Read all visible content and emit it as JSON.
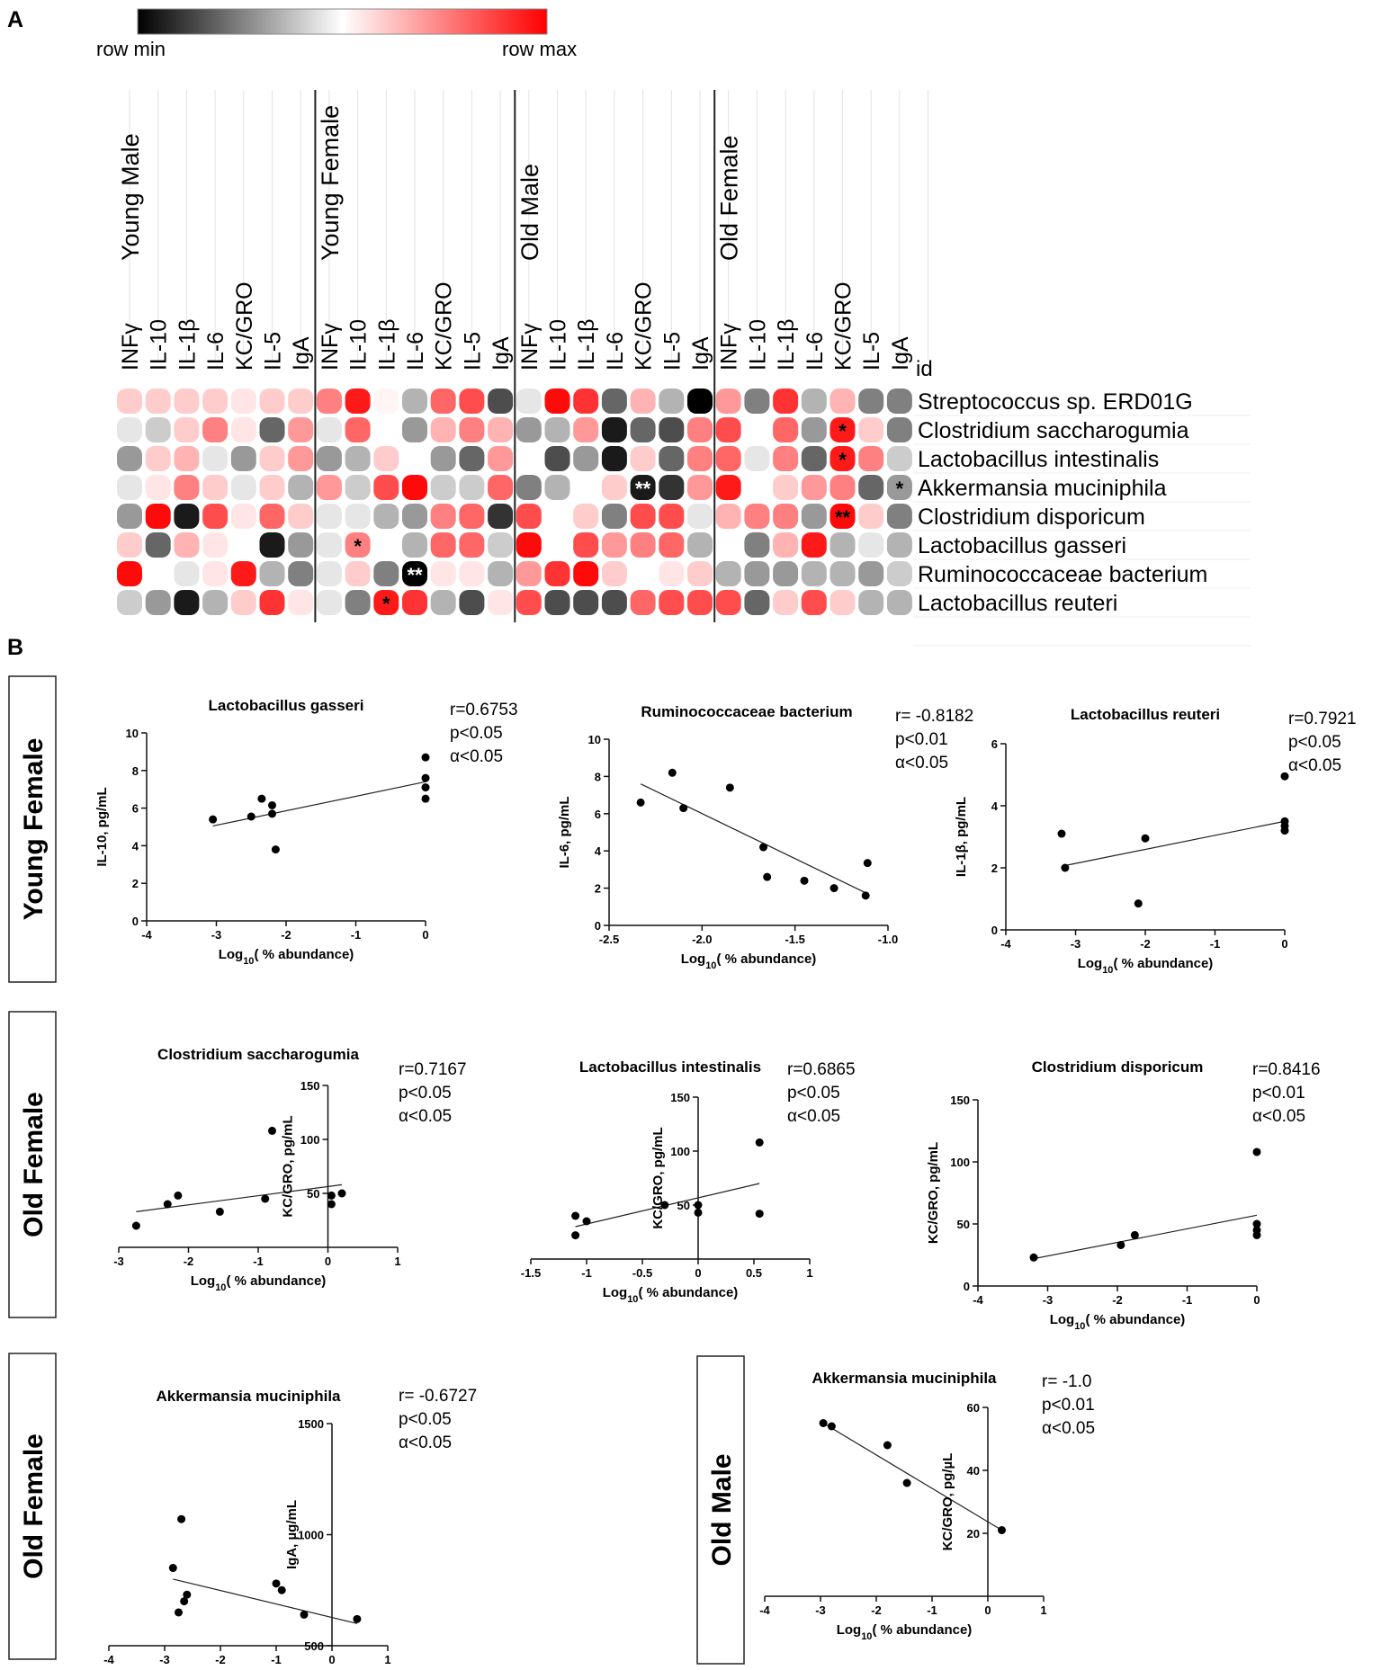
{
  "figure": {
    "panel_a": "A",
    "panel_b": "B",
    "legend": {
      "min_label": "row min",
      "max_label": "row max",
      "min_color": "#000000",
      "mid_color": "#ffffff",
      "max_color": "#ff0000"
    },
    "groups": [
      "Young Male",
      "Young Female",
      "Old Male",
      "Old Female"
    ],
    "cytokines": [
      "INFγ",
      "IL-10",
      "IL-1β",
      "IL-6",
      "KC/GRO",
      "IL-5",
      "IgA"
    ],
    "id_label": "id",
    "side_labels": [
      "Young Female",
      "Old Female",
      "Old Female",
      "Old Male"
    ]
  },
  "chart_data": [
    {
      "type": "heatmap",
      "title": "",
      "legend": "top-left",
      "scale": "row min to row max (values 0 = row min, 1 = row max, 0.5 = white)",
      "rows": [
        "Streptococcus sp. ERD01G",
        "Clostridium saccharogumia",
        "Lactobacillus intestinalis",
        "Akkermansia muciniphila",
        "Clostridium disporicum",
        "Lactobacillus gasseri",
        "Ruminococcaceae bacterium",
        "Lactobacillus reuteri"
      ],
      "columns": [
        "Young Male INFγ",
        "Young Male IL-10",
        "Young Male IL-1β",
        "Young Male IL-6",
        "Young Male KC/GRO",
        "Young Male IL-5",
        "Young Male IgA",
        "Young Female INFγ",
        "Young Female IL-10",
        "Young Female IL-1β",
        "Young Female IL-6",
        "Young Female KC/GRO",
        "Young Female IL-5",
        "Young Female IgA",
        "Old Male INFγ",
        "Old Male IL-10",
        "Old Male IL-1β",
        "Old Male IL-6",
        "Old Male KC/GRO",
        "Old Male IL-5",
        "Old Male IgA",
        "Old Female INFγ",
        "Old Female IL-10",
        "Old Female IL-1β",
        "Old Female IL-6",
        "Old Female KC/GRO",
        "Old Female IL-5",
        "Old Female IgA"
      ],
      "values": [
        [
          0.6,
          0.6,
          0.6,
          0.6,
          0.55,
          0.6,
          0.6,
          0.75,
          0.95,
          0.52,
          0.35,
          0.8,
          0.85,
          0.15,
          0.45,
          0.98,
          0.9,
          0.2,
          0.65,
          0.35,
          0.0,
          0.7,
          0.25,
          0.9,
          0.35,
          0.65,
          0.25,
          0.25
        ],
        [
          0.45,
          0.4,
          0.6,
          0.75,
          0.55,
          0.2,
          0.7,
          0.45,
          0.8,
          0.5,
          0.3,
          0.65,
          0.75,
          0.65,
          0.3,
          0.35,
          0.7,
          0.05,
          0.2,
          0.15,
          0.75,
          0.85,
          0.5,
          0.8,
          0.3,
          0.95,
          0.6,
          0.25
        ],
        [
          0.3,
          0.6,
          0.65,
          0.45,
          0.3,
          0.6,
          0.7,
          0.3,
          0.35,
          0.6,
          0.5,
          0.3,
          0.2,
          0.7,
          0.5,
          0.15,
          0.3,
          0.05,
          0.6,
          0.2,
          0.75,
          0.8,
          0.45,
          0.75,
          0.2,
          0.95,
          0.75,
          0.4
        ],
        [
          0.45,
          0.55,
          0.75,
          0.6,
          0.45,
          0.6,
          0.35,
          0.7,
          0.4,
          0.85,
          0.98,
          0.4,
          0.4,
          0.8,
          0.25,
          0.35,
          0.5,
          0.6,
          0.05,
          0.1,
          0.7,
          0.95,
          0.5,
          0.6,
          0.7,
          0.75,
          0.2,
          0.3
        ],
        [
          0.3,
          0.98,
          0.05,
          0.85,
          0.55,
          0.8,
          0.6,
          0.45,
          0.45,
          0.35,
          0.3,
          0.75,
          0.8,
          0.1,
          0.85,
          0.5,
          0.6,
          0.25,
          0.85,
          0.85,
          0.45,
          0.65,
          0.75,
          0.75,
          0.3,
          0.98,
          0.6,
          0.25
        ],
        [
          0.6,
          0.2,
          0.65,
          0.55,
          0.5,
          0.05,
          0.3,
          0.45,
          0.75,
          0.5,
          0.35,
          0.8,
          0.8,
          0.4,
          0.98,
          0.5,
          0.85,
          0.7,
          0.75,
          0.8,
          0.35,
          0.5,
          0.25,
          0.65,
          0.95,
          0.35,
          0.45,
          0.35
        ],
        [
          0.98,
          0.5,
          0.45,
          0.55,
          0.95,
          0.35,
          0.25,
          0.45,
          0.6,
          0.25,
          0.0,
          0.55,
          0.55,
          0.35,
          0.7,
          0.9,
          0.98,
          0.6,
          0.5,
          0.55,
          0.6,
          0.35,
          0.3,
          0.3,
          0.35,
          0.35,
          0.3,
          0.4
        ],
        [
          0.4,
          0.3,
          0.05,
          0.35,
          0.6,
          0.9,
          0.55,
          0.45,
          0.25,
          0.95,
          0.9,
          0.35,
          0.15,
          0.55,
          0.85,
          0.15,
          0.15,
          0.15,
          0.8,
          0.85,
          0.85,
          0.85,
          0.2,
          0.6,
          0.85,
          0.6,
          0.35,
          0.35
        ]
      ],
      "annotations": [
        {
          "row": "Clostridium saccharogumia",
          "column": "Old Female KC/GRO",
          "text": "*"
        },
        {
          "row": "Lactobacillus intestinalis",
          "column": "Old Female KC/GRO",
          "text": "*"
        },
        {
          "row": "Akkermansia muciniphila",
          "column": "Old Male KC/GRO",
          "text": "**"
        },
        {
          "row": "Akkermansia muciniphila",
          "column": "Old Female IgA",
          "text": "*"
        },
        {
          "row": "Clostridium disporicum",
          "column": "Old Female KC/GRO",
          "text": "**"
        },
        {
          "row": "Lactobacillus gasseri",
          "column": "Young Female IL-10",
          "text": "*"
        },
        {
          "row": "Ruminococcaceae bacterium",
          "column": "Young Female IL-6",
          "text": "**"
        },
        {
          "row": "Lactobacillus reuteri",
          "column": "Young Female IL-1β",
          "text": "*"
        }
      ]
    },
    {
      "type": "scatter",
      "title": "Lactobacillus gasseri",
      "group": "Young Female",
      "xlabel": "Log10( % abundance)",
      "ylabel": "IL-10, pg/mL",
      "xlim": [
        -4,
        0
      ],
      "ylim": [
        0,
        10
      ],
      "xticks": [
        -4,
        -3,
        -2,
        -1,
        0
      ],
      "yticks": [
        0,
        2,
        4,
        6,
        8,
        10
      ],
      "points": [
        [
          -3.05,
          5.4
        ],
        [
          -2.5,
          5.55
        ],
        [
          -2.35,
          6.5
        ],
        [
          -2.2,
          5.7
        ],
        [
          -2.2,
          6.15
        ],
        [
          -2.15,
          3.8
        ],
        [
          0,
          6.5
        ],
        [
          0,
          7.1
        ],
        [
          0,
          7.6
        ],
        [
          0,
          8.7
        ]
      ],
      "fit": [
        [
          -3.05,
          5.05
        ],
        [
          0,
          7.4
        ]
      ],
      "stats": [
        "r=0.6753",
        "p<0.05",
        "α<0.05"
      ]
    },
    {
      "type": "scatter",
      "title": "Ruminococcaceae bacterium",
      "group": "Young Female",
      "xlabel": "Log10( % abundance)",
      "ylabel": "IL-6, pg/mL",
      "xlim": [
        -2.5,
        -1.0
      ],
      "ylim": [
        0,
        10
      ],
      "xticks": [
        -2.5,
        -2.0,
        -1.5,
        -1.0
      ],
      "yticks": [
        0,
        2,
        4,
        6,
        8,
        10
      ],
      "points": [
        [
          -2.33,
          6.6
        ],
        [
          -2.16,
          8.2
        ],
        [
          -2.1,
          6.3
        ],
        [
          -1.85,
          7.4
        ],
        [
          -1.67,
          4.2
        ],
        [
          -1.65,
          2.6
        ],
        [
          -1.45,
          2.4
        ],
        [
          -1.29,
          2.0
        ],
        [
          -1.12,
          1.6
        ],
        [
          -1.11,
          3.35
        ]
      ],
      "fit": [
        [
          -2.33,
          7.6
        ],
        [
          -1.11,
          1.7
        ]
      ],
      "stats": [
        "r= -0.8182",
        "p<0.01",
        "α<0.05"
      ]
    },
    {
      "type": "scatter",
      "title": "Lactobacillus reuteri",
      "group": "Young Female",
      "xlabel": "Log10( % abundance)",
      "ylabel": "IL-1β, pg/mL",
      "xlim": [
        -4,
        0
      ],
      "ylim": [
        0,
        6
      ],
      "xticks": [
        -4,
        -3,
        -2,
        -1,
        0
      ],
      "yticks": [
        0,
        2,
        4,
        6
      ],
      "points": [
        [
          -3.2,
          3.1
        ],
        [
          -3.15,
          2.0
        ],
        [
          -2.1,
          0.85
        ],
        [
          -2.0,
          2.95
        ],
        [
          0,
          3.2
        ],
        [
          0,
          3.35
        ],
        [
          0,
          3.5
        ],
        [
          0,
          4.95
        ]
      ],
      "fit": [
        [
          -3.2,
          2.05
        ],
        [
          0,
          3.5
        ]
      ],
      "stats": [
        "r=0.7921",
        "p<0.05",
        "α<0.05"
      ]
    },
    {
      "type": "scatter",
      "title": "Clostridium saccharogumia",
      "group": "Old Female",
      "xlabel": "Log10( % abundance)",
      "ylabel": "KC/GRO, pg/mL",
      "xlim": [
        -3,
        1
      ],
      "ylim": [
        0,
        150
      ],
      "xticks": [
        -3,
        -2,
        -1,
        0,
        1
      ],
      "yticks": [
        50,
        100,
        150
      ],
      "points": [
        [
          -2.75,
          20
        ],
        [
          -2.3,
          40
        ],
        [
          -2.15,
          48
        ],
        [
          -1.55,
          33
        ],
        [
          -0.9,
          45
        ],
        [
          0.05,
          40
        ],
        [
          0.05,
          48
        ],
        [
          0.2,
          50
        ],
        [
          -0.8,
          108
        ]
      ],
      "fit": [
        [
          -2.75,
          33
        ],
        [
          0.2,
          58
        ]
      ],
      "stats": [
        "r=0.7167",
        "p<0.05",
        "α<0.05"
      ]
    },
    {
      "type": "scatter",
      "title": "Lactobacillus intestinalis",
      "group": "Old Female",
      "xlabel": "Log10( % abundance)",
      "ylabel": "KC/GRO, pg/mL",
      "xlim": [
        -1.5,
        1.0
      ],
      "ylim": [
        0,
        150
      ],
      "xticks": [
        -1.5,
        -1.0,
        -0.5,
        0.0,
        0.5,
        1.0
      ],
      "yticks": [
        50,
        100,
        150
      ],
      "points": [
        [
          -1.1,
          22
        ],
        [
          -1.1,
          40
        ],
        [
          -1.0,
          35
        ],
        [
          -0.3,
          50
        ],
        [
          0.0,
          43
        ],
        [
          0.0,
          50
        ],
        [
          0.55,
          42
        ],
        [
          0.55,
          108
        ]
      ],
      "fit": [
        [
          -1.1,
          30
        ],
        [
          0.55,
          70
        ]
      ],
      "stats": [
        "r=0.6865",
        "p<0.05",
        "α<0.05"
      ]
    },
    {
      "type": "scatter",
      "title": "Clostridium disporicum",
      "group": "Old Female",
      "xlabel": "Log10( % abundance)",
      "ylabel": "KC/GRO, pg/mL",
      "xlim": [
        -4,
        0
      ],
      "ylim": [
        0,
        150
      ],
      "xticks": [
        -4,
        -3,
        -2,
        -1,
        0
      ],
      "yticks": [
        0,
        50,
        100,
        150
      ],
      "points": [
        [
          -3.2,
          23
        ],
        [
          -1.95,
          33
        ],
        [
          -1.75,
          41
        ],
        [
          0,
          41
        ],
        [
          0,
          45
        ],
        [
          0,
          50
        ],
        [
          0,
          108
        ]
      ],
      "fit": [
        [
          -3.2,
          22
        ],
        [
          0,
          57
        ]
      ],
      "stats": [
        "r=0.8416",
        "p<0.01",
        "α<0.05"
      ]
    },
    {
      "type": "scatter",
      "title": "Akkermansia muciniphila",
      "group": "Old Female",
      "xlabel": "Log10( % abundance)",
      "ylabel": "IgA, µg/mL",
      "xlim": [
        -4,
        1
      ],
      "ylim": [
        500,
        1500
      ],
      "xticks": [
        -4,
        -3,
        -2,
        -1,
        0,
        1
      ],
      "yticks": [
        500,
        1000,
        1500
      ],
      "points": [
        [
          -2.85,
          850
        ],
        [
          -2.75,
          650
        ],
        [
          -2.7,
          1070
        ],
        [
          -2.65,
          700
        ],
        [
          -2.6,
          730
        ],
        [
          -1.0,
          780
        ],
        [
          -0.9,
          750
        ],
        [
          -0.5,
          640
        ],
        [
          0.45,
          620
        ]
      ],
      "fit": [
        [
          -2.85,
          800
        ],
        [
          0.45,
          600
        ]
      ],
      "stats": [
        "r= -0.6727",
        "p<0.05",
        "α<0.05"
      ]
    },
    {
      "type": "scatter",
      "title": "Akkermansia muciniphila",
      "group": "Old Male",
      "xlabel": "Log10( % abundance)",
      "ylabel": "KC/GRO, pg/µL",
      "xlim": [
        -4,
        1
      ],
      "ylim": [
        0,
        60
      ],
      "xticks": [
        -4,
        -3,
        -2,
        -1,
        0,
        1
      ],
      "yticks": [
        20,
        40,
        60
      ],
      "points": [
        [
          -2.95,
          55
        ],
        [
          -2.8,
          54
        ],
        [
          -1.8,
          48
        ],
        [
          -1.45,
          36
        ],
        [
          0.25,
          21
        ]
      ],
      "fit": [
        [
          -2.95,
          55
        ],
        [
          0.25,
          21
        ]
      ],
      "stats": [
        "r= -1.0",
        "p<0.01",
        "α<0.05"
      ]
    }
  ]
}
